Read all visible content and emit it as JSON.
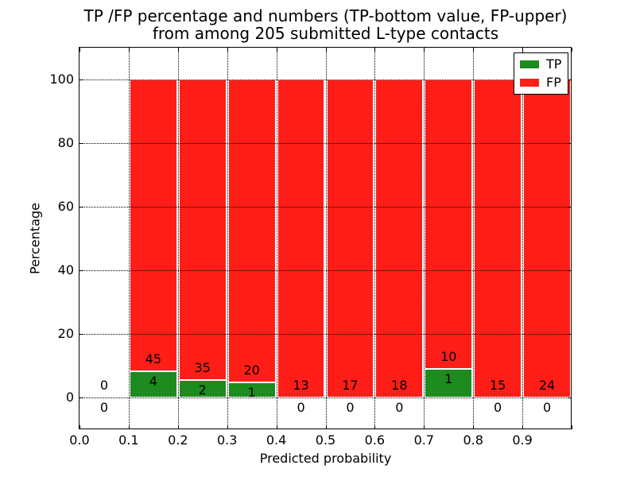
{
  "chart_data": {
    "type": "bar",
    "variant": "stacked-percentage-histogram",
    "title_lines": [
      "TP /FP percentage and numbers (TP-bottom value, FP-upper)",
      "from among 205 submitted L-type contacts"
    ],
    "xlabel": "Predicted probability",
    "ylabel": "Percentage",
    "xlim": [
      0.0,
      1.0
    ],
    "ylim": [
      -10,
      110
    ],
    "xtick_values": [
      0.0,
      0.1,
      0.2,
      0.3,
      0.4,
      0.5,
      0.6,
      0.7,
      0.8,
      0.9
    ],
    "xtick_labels": [
      "0.0",
      "0.1",
      "0.2",
      "0.3",
      "0.4",
      "0.5",
      "0.6",
      "0.7",
      "0.8",
      "0.9"
    ],
    "ytick_values": [
      0,
      20,
      40,
      60,
      80,
      100
    ],
    "ytick_labels": [
      "0",
      "20",
      "40",
      "60",
      "80",
      "100"
    ],
    "grid": "dotted",
    "total_submitted": 205,
    "colors": {
      "tp": "#1e8b1e",
      "fp": "#ff1e17"
    },
    "legend": {
      "position": "upper-right",
      "entries": [
        {
          "label": "TP",
          "color": "#1e8b1e"
        },
        {
          "label": "FP",
          "color": "#ff1e17"
        }
      ]
    },
    "bins": [
      {
        "x_start": 0.0,
        "x_end": 0.1,
        "tp_count": 0,
        "fp_count": 0,
        "tp_percent": 0.0,
        "fp_percent": 0.0
      },
      {
        "x_start": 0.1,
        "x_end": 0.2,
        "tp_count": 4,
        "fp_count": 45,
        "tp_percent": 8.16,
        "fp_percent": 91.84
      },
      {
        "x_start": 0.2,
        "x_end": 0.3,
        "tp_count": 2,
        "fp_count": 35,
        "tp_percent": 5.41,
        "fp_percent": 94.59
      },
      {
        "x_start": 0.3,
        "x_end": 0.4,
        "tp_count": 1,
        "fp_count": 20,
        "tp_percent": 4.76,
        "fp_percent": 95.24
      },
      {
        "x_start": 0.4,
        "x_end": 0.5,
        "tp_count": 0,
        "fp_count": 13,
        "tp_percent": 0.0,
        "fp_percent": 100.0
      },
      {
        "x_start": 0.5,
        "x_end": 0.6,
        "tp_count": 0,
        "fp_count": 17,
        "tp_percent": 0.0,
        "fp_percent": 100.0
      },
      {
        "x_start": 0.6,
        "x_end": 0.7,
        "tp_count": 0,
        "fp_count": 18,
        "tp_percent": 0.0,
        "fp_percent": 100.0
      },
      {
        "x_start": 0.7,
        "x_end": 0.8,
        "tp_count": 1,
        "fp_count": 10,
        "tp_percent": 9.09,
        "fp_percent": 90.91
      },
      {
        "x_start": 0.8,
        "x_end": 0.9,
        "tp_count": 0,
        "fp_count": 15,
        "tp_percent": 0.0,
        "fp_percent": 100.0
      },
      {
        "x_start": 0.9,
        "x_end": 1.0,
        "tp_count": 0,
        "fp_count": 24,
        "tp_percent": 0.0,
        "fp_percent": 100.0
      }
    ]
  }
}
